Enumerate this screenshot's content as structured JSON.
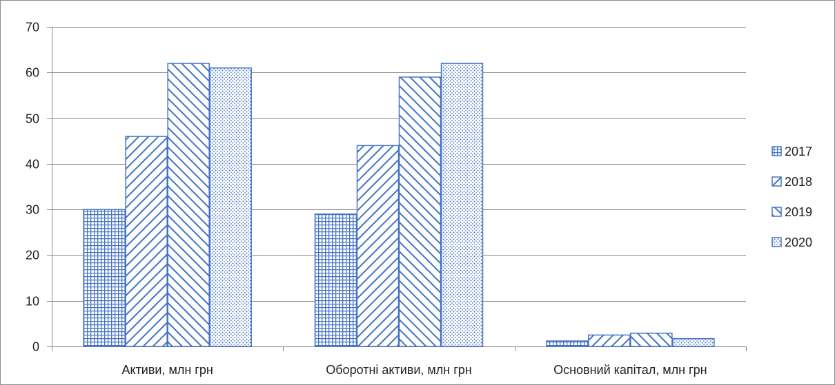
{
  "chart_data": {
    "type": "bar",
    "title": "",
    "xlabel": "",
    "ylabel": "",
    "categories": [
      "Активи, млн грн",
      "Оборотні активи, млн грн",
      "Основний капітал, млн грн"
    ],
    "series": [
      {
        "name": "2017",
        "values": [
          30,
          29,
          1.2
        ],
        "pattern": "grid"
      },
      {
        "name": "2018",
        "values": [
          46,
          44,
          2.5
        ],
        "pattern": "back-diagonal"
      },
      {
        "name": "2019",
        "values": [
          62,
          59,
          2.9
        ],
        "pattern": "forward-diagonal"
      },
      {
        "name": "2020",
        "values": [
          61,
          62,
          1.7
        ],
        "pattern": "dots"
      }
    ],
    "ylim": [
      0,
      70
    ],
    "yticks": [
      0,
      10,
      20,
      30,
      40,
      50,
      60,
      70
    ],
    "grid": true,
    "legend": "right",
    "colors": {
      "bar": "#4472C4",
      "grid": "#868686",
      "axis": "#868686"
    }
  }
}
